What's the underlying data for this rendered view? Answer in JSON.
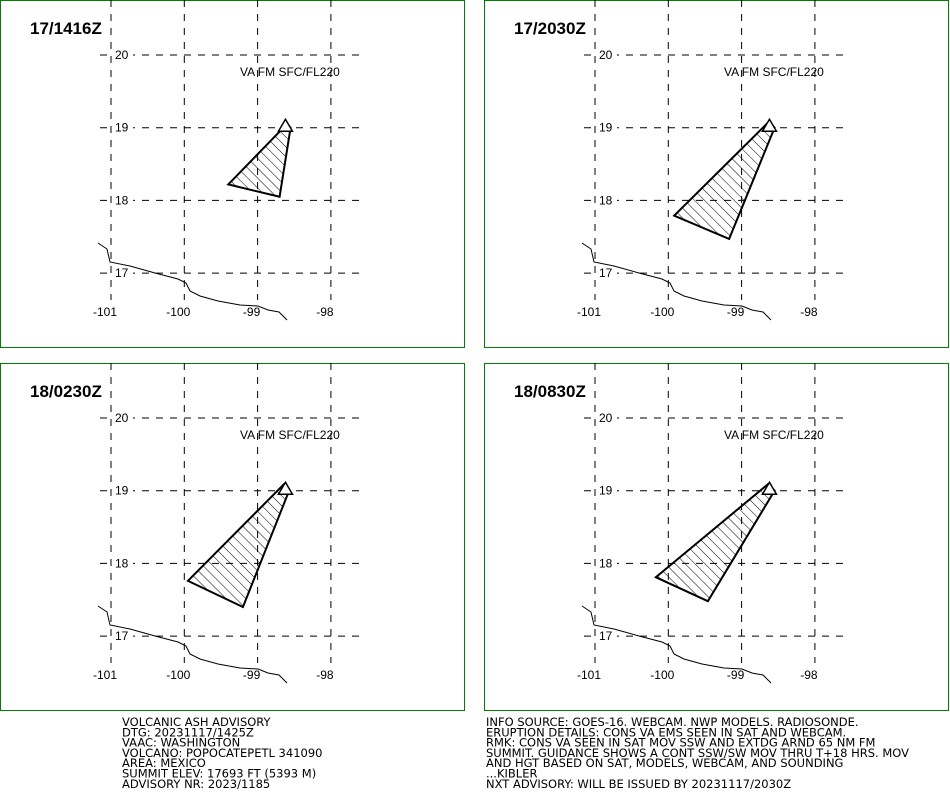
{
  "panels": [
    {
      "time": "17/1416Z",
      "label": "VA FM SFC/FL220",
      "lon": [
        -98.6,
        -98.55,
        -98.7,
        -99.4
      ],
      "lat": [
        19.05,
        19.0,
        18.05,
        18.22
      ]
    },
    {
      "time": "17/2030Z",
      "label": "VA FM SFC/FL220",
      "lon": [
        -98.63,
        -98.55,
        -99.17,
        -99.92
      ],
      "lat": [
        19.08,
        19.0,
        17.47,
        17.79
      ]
    },
    {
      "time": "18/0230Z",
      "label": "VA FM SFC/FL220",
      "lon": [
        -98.64,
        -98.57,
        -99.2,
        -99.95
      ],
      "lat": [
        19.09,
        19.0,
        17.4,
        17.76
      ]
    },
    {
      "time": "18/0830Z",
      "label": "VA FM SFC/FL220",
      "lon": [
        -98.64,
        -98.55,
        -99.46,
        -100.17
      ],
      "lat": [
        19.09,
        19.0,
        17.48,
        17.81
      ]
    }
  ],
  "lon_ticks": [
    -101,
    -100,
    -99,
    -98
  ],
  "lat_ticks": [
    17,
    18,
    19,
    20
  ],
  "volcano": {
    "lon": -98.62,
    "lat": 19.02
  },
  "advisory_left": [
    "VOLCANIC ASH ADVISORY",
    "DTG: 20231117/1425Z",
    "VAAC: WASHINGTON",
    "VOLCANO: POPOCATEPETL 341090",
    "AREA: MEXICO",
    "SUMMIT ELEV: 17693 FT (5393 M)",
    "ADVISORY NR: 2023/1185"
  ],
  "advisory_right": [
    "INFO SOURCE: GOES-16. WEBCAM. NWP MODELS. RADIOSONDE.",
    "ERUPTION DETAILS: CONS VA EMS SEEN IN SAT AND WEBCAM.",
    "RMK: CONS VA SEEN IN SAT MOV SSW AND EXTDG ARND 65 NM FM",
    "SUMMIT. GUIDANCE SHOWS A CONT SSW/SW MOV THRU T+18 HRS. MOV",
    "AND HGT BASED ON SAT, MODELS, WEBCAM, AND SOUNDING",
    "...KIBLER",
    "NXT ADVISORY: WILL BE ISSUED BY 20231117/2030Z"
  ]
}
